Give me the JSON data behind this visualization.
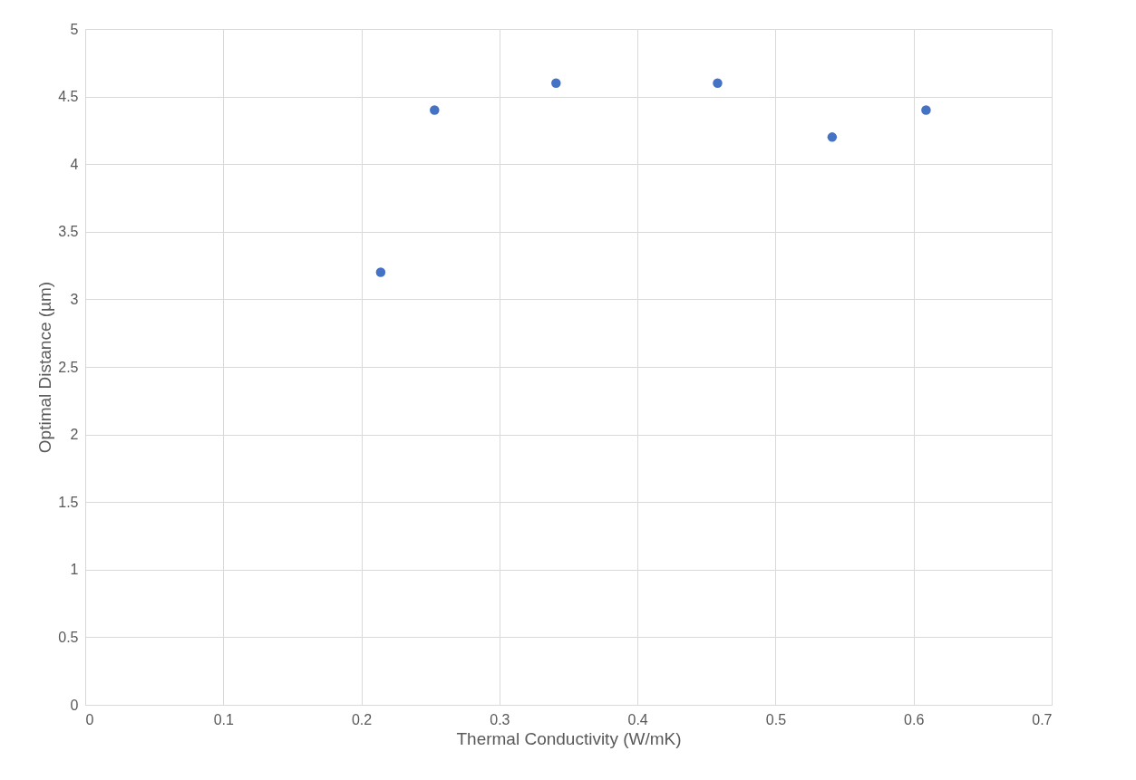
{
  "chart_data": {
    "type": "scatter",
    "xlabel": "Thermal Conductivity (W/mK)",
    "ylabel": "Optimal Distance (µm)",
    "x": [
      0.214,
      0.253,
      0.341,
      0.458,
      0.541,
      0.609
    ],
    "series": [
      {
        "color": "#4472c4",
        "values": [
          3.2,
          4.4,
          4.6,
          4.6,
          4.2,
          4.4
        ]
      }
    ],
    "xlim": [
      0,
      0.7
    ],
    "xticks": [
      0,
      0.1,
      0.2,
      0.3,
      0.4,
      0.5,
      0.6,
      0.7
    ],
    "ylim": [
      0,
      5
    ],
    "yticks": [
      0,
      0.5,
      1,
      1.5,
      2,
      2.5,
      3,
      3.5,
      4,
      4.5,
      5
    ],
    "grid": true,
    "marker": "circle"
  }
}
